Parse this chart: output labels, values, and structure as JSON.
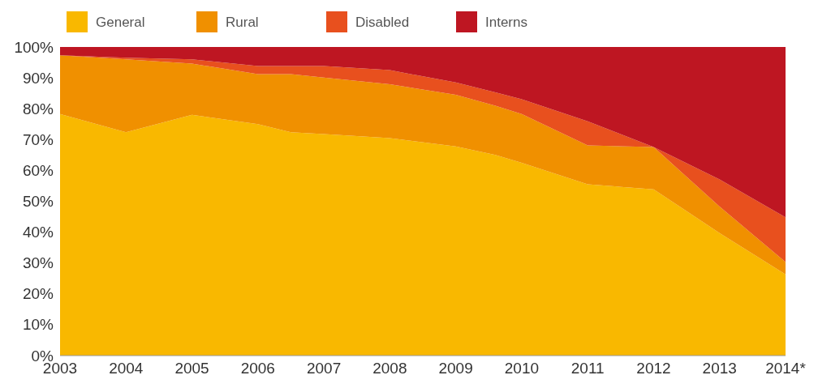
{
  "chart_data": {
    "type": "area",
    "stacked": true,
    "legend": "top left",
    "grid": false,
    "x": [
      2003,
      2004,
      2005,
      2006,
      2006.5,
      2007,
      2008,
      2009,
      2009.6,
      2010,
      2011,
      2012,
      2013,
      2014
    ],
    "xlim": [
      2003,
      2014
    ],
    "xticks": [
      2003,
      2004,
      2005,
      2006,
      2007,
      2008,
      2009,
      2010,
      2011,
      2012,
      2013,
      {
        "value": 2014,
        "label": "2014*"
      }
    ],
    "ylim": [
      0,
      100
    ],
    "yticks": [
      {
        "value": 0,
        "label": "0%"
      },
      {
        "value": 10,
        "label": "10%"
      },
      {
        "value": 20,
        "label": "20%"
      },
      {
        "value": 30,
        "label": "30%"
      },
      {
        "value": 40,
        "label": "40%"
      },
      {
        "value": 50,
        "label": "50%"
      },
      {
        "value": 60,
        "label": "60%"
      },
      {
        "value": 70,
        "label": "70%"
      },
      {
        "value": 80,
        "label": "80%"
      },
      {
        "value": 90,
        "label": "90%"
      },
      {
        "value": 100,
        "label": "100%"
      }
    ],
    "series": [
      {
        "name": "General",
        "color": "#f9b800",
        "values": [
          78.3,
          72.4,
          78,
          75,
          72.4,
          71.8,
          70.5,
          67.8,
          65,
          62.5,
          55.5,
          53.9,
          39.7,
          26.3
        ]
      },
      {
        "name": "Rural",
        "color": "#f09000",
        "values": [
          19,
          23.6,
          16.6,
          16.2,
          18.8,
          18.3,
          17.4,
          16.7,
          16,
          15.8,
          12.6,
          13.7,
          8.6,
          4
        ]
      },
      {
        "name": "Disabled",
        "color": "#e8501e",
        "values": [
          0,
          0.5,
          1.4,
          2.6,
          2.6,
          3.7,
          4.6,
          4,
          4.3,
          4.8,
          7.8,
          0,
          8.8,
          14.5
        ]
      },
      {
        "name": "Interns",
        "color": "#be1622",
        "values": [
          2.7,
          3.5,
          4,
          6.2,
          6.2,
          6.2,
          7.5,
          11.5,
          14.7,
          16.9,
          24.1,
          32.4,
          42.9,
          55.2
        ]
      }
    ]
  }
}
